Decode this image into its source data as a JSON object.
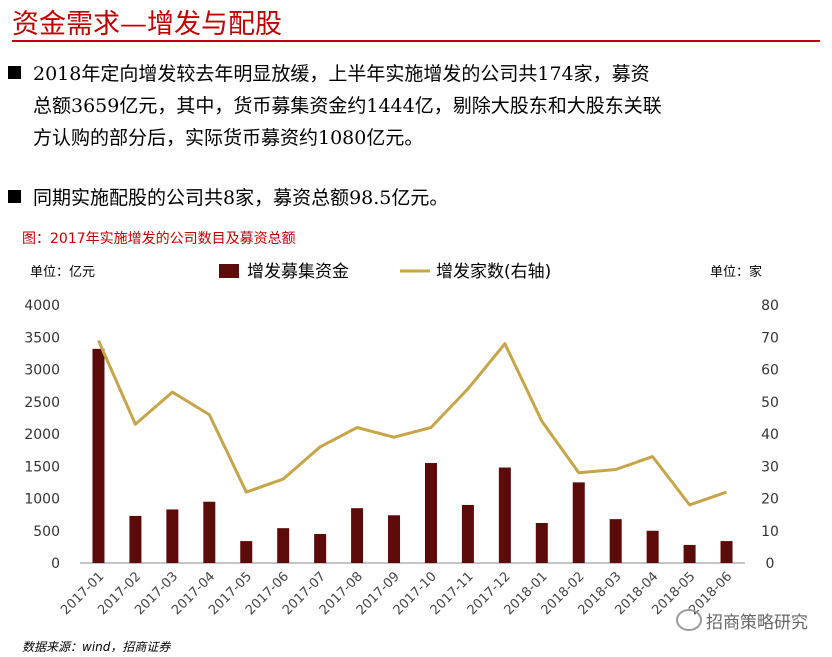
{
  "title": "资金需求—增发与配股",
  "bullets": [
    {
      "lines": [
        "2018年定向增发较去年明显放缓，上半年实施增发的公司共174家，募资",
        "总额3659亿元，其中，货币募集资金约1444亿，剔除大股东和大股东关联",
        "方认购的部分后，实际货币募资约1080亿元。"
      ]
    },
    {
      "lines": [
        "同期实施配股的公司共8家，募资总额98.5亿元。"
      ]
    }
  ],
  "chart_caption": "图：2017年实施增发的公司数目及募资总额",
  "source": "数据来源：wind，招商证券",
  "watermark": "招商策略研究",
  "colors": {
    "bar": "#5c0a0a",
    "line": "#c5a547",
    "title": "#c00000"
  },
  "chart_data": {
    "type": "bar+line",
    "categories": [
      "2017-01",
      "2017-02",
      "2017-03",
      "2017-04",
      "2017-05",
      "2017-06",
      "2017-07",
      "2017-08",
      "2017-09",
      "2017-10",
      "2017-11",
      "2017-12",
      "2018-01",
      "2018-02",
      "2018-03",
      "2018-04",
      "2018-05",
      "2018-06"
    ],
    "series": [
      {
        "name": "增发募集资金",
        "type": "bar",
        "axis": "left",
        "values": [
          3320,
          730,
          830,
          950,
          340,
          540,
          450,
          850,
          740,
          1550,
          900,
          1480,
          620,
          1250,
          680,
          500,
          280,
          340
        ]
      },
      {
        "name": "增发家数(右轴)",
        "type": "line",
        "axis": "right",
        "values": [
          69,
          43,
          53,
          46,
          22,
          26,
          36,
          42,
          39,
          42,
          54,
          68,
          44,
          28,
          29,
          33,
          18,
          22
        ]
      }
    ],
    "left_unit": "单位：亿元",
    "right_unit": "单位：家",
    "ylim_left": [
      0,
      4000
    ],
    "yticks_left": [
      "4000",
      "3500",
      "3000",
      "2500",
      "2000",
      "1500",
      "1000",
      "500",
      "0"
    ],
    "ylim_right": [
      0,
      80
    ],
    "yticks_right": [
      "80",
      "70",
      "60",
      "50",
      "40",
      "30",
      "20",
      "10",
      "0"
    ],
    "legend_position": "top"
  }
}
